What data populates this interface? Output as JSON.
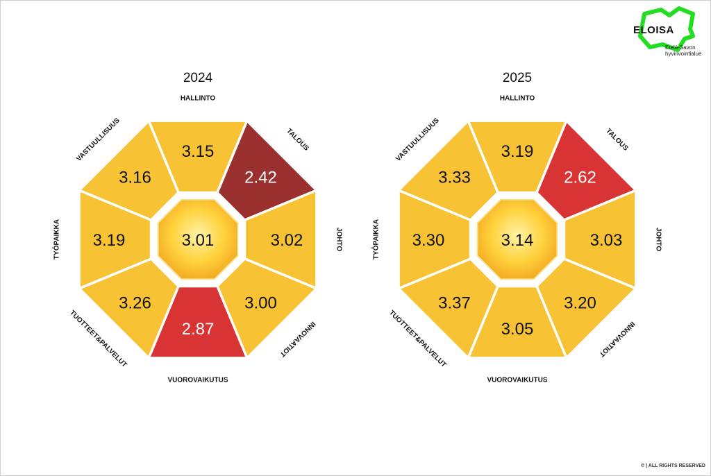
{
  "brand": {
    "name": "ELOISA",
    "subtitle_line1": "Etelä-Savon",
    "subtitle_line2": "hyvinvointialue",
    "logo_color": "#22dd22"
  },
  "footer": {
    "text": "© | ALL RIGHTS RESERVED"
  },
  "colors": {
    "yellow": "#f7c234",
    "red": "#d93434",
    "dark_red": "#9a312f"
  },
  "chart_data": [
    {
      "type": "radial-octagon",
      "title": "2024",
      "center_value": "3.01",
      "segments": [
        {
          "label": "HALLINTO",
          "value": "3.15",
          "color": "#f7c234"
        },
        {
          "label": "TALOUS",
          "value": "2.42",
          "color": "#9a312f"
        },
        {
          "label": "JOHTO",
          "value": "3.02",
          "color": "#f7c234"
        },
        {
          "label": "INNOVAATIOT",
          "value": "3.00",
          "color": "#f7c234"
        },
        {
          "label": "VUOROVAIKUTUS",
          "value": "2.87",
          "color": "#d93434"
        },
        {
          "label": "TUOTTEET&PALVELUT",
          "value": "3.26",
          "color": "#f7c234"
        },
        {
          "label": "TYÖPAIKKA",
          "value": "3.19",
          "color": "#f7c234"
        },
        {
          "label": "VASTUULLISUUS",
          "value": "3.16",
          "color": "#f7c234"
        }
      ]
    },
    {
      "type": "radial-octagon",
      "title": "2025",
      "center_value": "3.14",
      "segments": [
        {
          "label": "HALLINTO",
          "value": "3.19",
          "color": "#f7c234"
        },
        {
          "label": "TALOUS",
          "value": "2.62",
          "color": "#d93434"
        },
        {
          "label": "JOHTO",
          "value": "3.03",
          "color": "#f7c234"
        },
        {
          "label": "INNOVAATIOT",
          "value": "3.20",
          "color": "#f7c234"
        },
        {
          "label": "VUOROVAIKUTUS",
          "value": "3.05",
          "color": "#f7c234"
        },
        {
          "label": "TUOTTEET&PALVELUT",
          "value": "3.37",
          "color": "#f7c234"
        },
        {
          "label": "TYÖPAIKKA",
          "value": "3.30",
          "color": "#f7c234"
        },
        {
          "label": "VASTUULLISUUS",
          "value": "3.33",
          "color": "#f7c234"
        }
      ]
    }
  ]
}
